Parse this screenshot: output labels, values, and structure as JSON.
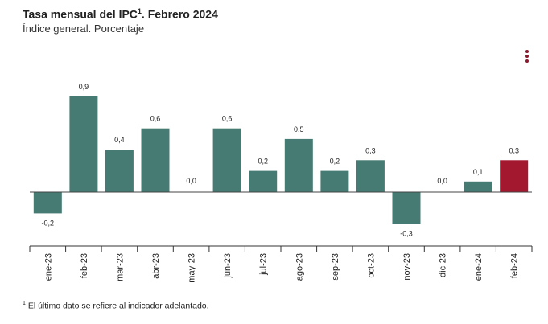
{
  "title": "Tasa mensual del IPC",
  "title_sup": "1",
  "title_rest": ". Febrero 2024",
  "subtitle": "Índice general. Porcentaje",
  "footnote_sup": "1",
  "footnote": "El último dato se refiere al indicador adelantado.",
  "menu_icon": "vertical-dots-icon",
  "colors": {
    "bar": "#457b72",
    "highlight": "#a3172f",
    "axis": "#333333",
    "menu": "#8b1a2f"
  },
  "chart_data": {
    "type": "bar",
    "categories": [
      "ene-23",
      "feb-23",
      "mar-23",
      "abr-23",
      "may-23",
      "jun-23",
      "jul-23",
      "ago-23",
      "sep-23",
      "oct-23",
      "nov-23",
      "dic-23",
      "ene-24",
      "feb-24"
    ],
    "values": [
      -0.2,
      0.9,
      0.4,
      0.6,
      0.0,
      0.6,
      0.2,
      0.5,
      0.2,
      0.3,
      -0.3,
      0.0,
      0.1,
      0.3
    ],
    "value_labels": [
      "-0,2",
      "0,9",
      "0,4",
      "0,6",
      "0,0",
      "0,6",
      "0,2",
      "0,5",
      "0,2",
      "0,3",
      "-0,3",
      "0,0",
      "0,1",
      "0,3"
    ],
    "highlight_index": 13,
    "ylim": [
      -0.3,
      0.9
    ],
    "grid": false,
    "legend": "none"
  }
}
